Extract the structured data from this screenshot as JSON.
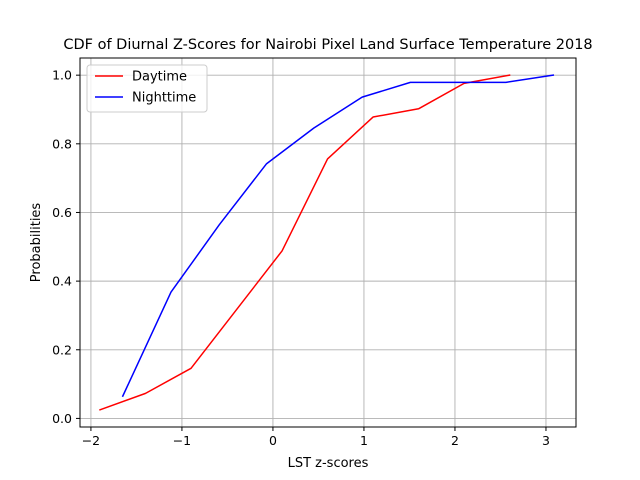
{
  "chart_data": {
    "type": "line",
    "title": "CDF of Diurnal Z-Scores for Nairobi Pixel Land Surface Temperature 2018",
    "xlabel": "LST z-scores",
    "ylabel": "Probabilities",
    "xlim": [
      -2.12,
      3.33
    ],
    "ylim": [
      -0.025,
      1.05
    ],
    "xticks": [
      -2,
      -1,
      0,
      1,
      2,
      3
    ],
    "xtick_labels": [
      "−2",
      "−1",
      "0",
      "1",
      "2",
      "3"
    ],
    "yticks": [
      0.0,
      0.2,
      0.4,
      0.6,
      0.8,
      1.0
    ],
    "ytick_labels": [
      "0.0",
      "0.2",
      "0.4",
      "0.6",
      "0.8",
      "1.0"
    ],
    "grid": true,
    "legend_position": "top-left",
    "series": [
      {
        "name": "Daytime",
        "color": "#ff0000",
        "x": [
          -1.9,
          -1.4,
          -0.9,
          0.1,
          0.6,
          1.1,
          1.6,
          2.1,
          2.6
        ],
        "y": [
          0.025,
          0.073,
          0.146,
          0.488,
          0.756,
          0.878,
          0.902,
          0.976,
          1.0
        ]
      },
      {
        "name": "Nighttime",
        "color": "#0000ff",
        "x": [
          -1.65,
          -1.12,
          -0.59,
          -0.07,
          0.45,
          0.98,
          1.51,
          2.03,
          2.56,
          3.08
        ],
        "y": [
          0.065,
          0.368,
          0.564,
          0.742,
          0.846,
          0.936,
          0.979,
          0.979,
          0.979,
          1.0
        ]
      }
    ]
  }
}
